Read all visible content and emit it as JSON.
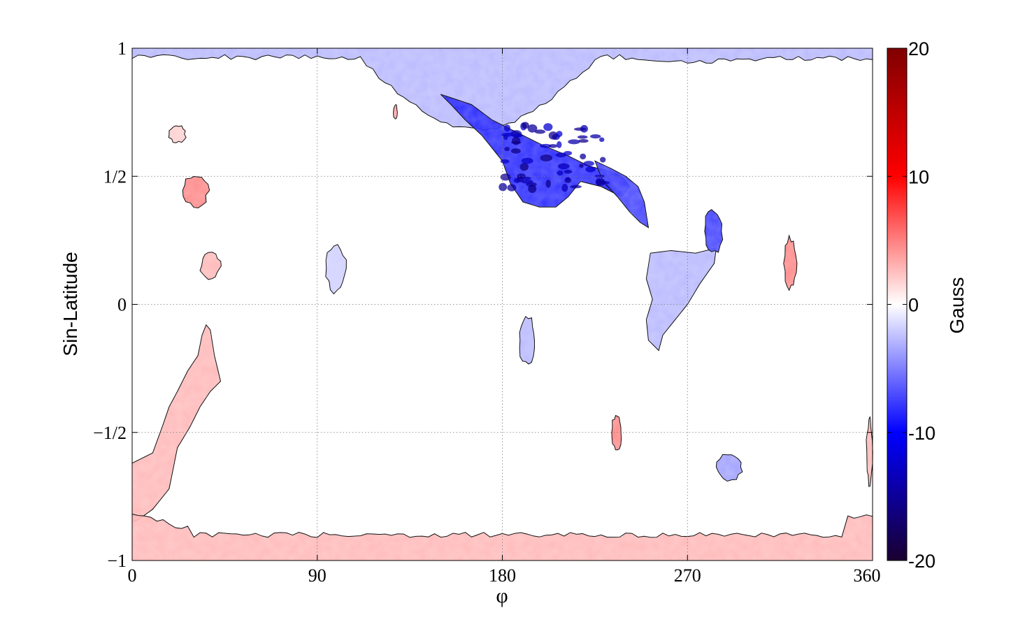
{
  "chart_data": {
    "type": "heatmap",
    "title": "",
    "xlabel": "φ",
    "ylabel": "Sin-Latitude",
    "xlim": [
      0,
      360
    ],
    "ylim": [
      -1,
      1
    ],
    "x_ticks": [
      "0",
      "90",
      "180",
      "270",
      "360"
    ],
    "x_tick_values": [
      0,
      90,
      180,
      270,
      360
    ],
    "y_ticks": [
      "1",
      "1/2",
      "0",
      "−1/2",
      "−1"
    ],
    "y_tick_values": [
      1,
      0.5,
      0,
      -0.5,
      -1
    ],
    "grid": true,
    "colorbar": {
      "label": "Gauss",
      "range": [
        -20,
        20
      ],
      "ticks": [
        "20",
        "10",
        "0",
        "-10",
        "-20"
      ],
      "tick_values": [
        20,
        10,
        0,
        -10,
        -20
      ],
      "colormap": [
        "#1a0030",
        "#0000ff",
        "#ffffff",
        "#ff0000",
        "#800000"
      ]
    },
    "regions": [
      {
        "name": "north-polar-cap",
        "mean_gauss": -3,
        "lon": [
          0,
          360
        ],
        "sinlat": [
          0.68,
          1.0
        ]
      },
      {
        "name": "northern-active-band",
        "mean_gauss": -9,
        "lon": [
          165,
          250
        ],
        "sinlat": [
          0.28,
          0.8
        ]
      },
      {
        "name": "northern-active-band-tail",
        "mean_gauss": -8,
        "lon": [
          225,
          250
        ],
        "sinlat": [
          0.28,
          0.55
        ]
      },
      {
        "name": "region-270-east",
        "mean_gauss": -3,
        "lon": [
          250,
          285
        ],
        "sinlat": [
          -0.18,
          0.22
        ]
      },
      {
        "name": "region-285-north",
        "mean_gauss": -8,
        "lon": [
          278,
          287
        ],
        "sinlat": [
          0.2,
          0.37
        ]
      },
      {
        "name": "west-north-spot-1",
        "mean_gauss": 2,
        "lon": [
          18,
          26
        ],
        "sinlat": [
          0.63,
          0.7
        ]
      },
      {
        "name": "west-north-spot-2",
        "mean_gauss": 5,
        "lon": [
          25,
          37
        ],
        "sinlat": [
          0.38,
          0.51
        ]
      },
      {
        "name": "west-north-spot-3",
        "mean_gauss": 3,
        "lon": [
          33,
          43
        ],
        "sinlat": [
          0.1,
          0.2
        ]
      },
      {
        "name": "small-spot-98",
        "mean_gauss": -2,
        "lon": [
          94,
          104
        ],
        "sinlat": [
          0.05,
          0.23
        ]
      },
      {
        "name": "small-spot-128",
        "mean_gauss": 4,
        "lon": [
          127,
          129
        ],
        "sinlat": [
          0.72,
          0.78
        ]
      },
      {
        "name": "southern-diagonal-band",
        "mean_gauss": 3,
        "lon": [
          0,
          45
        ],
        "sinlat": [
          -0.85,
          -0.08
        ]
      },
      {
        "name": "spot-192-south",
        "mean_gauss": -3,
        "lon": [
          188,
          196
        ],
        "sinlat": [
          -0.23,
          -0.05
        ]
      },
      {
        "name": "spot-235-south",
        "mean_gauss": 5,
        "lon": [
          233,
          238
        ],
        "sinlat": [
          -0.57,
          -0.43
        ]
      },
      {
        "name": "spot-290-south",
        "mean_gauss": -4,
        "lon": [
          284,
          297
        ],
        "sinlat": [
          -0.69,
          -0.58
        ]
      },
      {
        "name": "spot-320-north",
        "mean_gauss": 5,
        "lon": [
          317,
          323
        ],
        "sinlat": [
          0.06,
          0.26
        ]
      },
      {
        "name": "spot-360-south",
        "mean_gauss": 3,
        "lon": [
          357,
          360
        ],
        "sinlat": [
          -0.7,
          -0.45
        ]
      },
      {
        "name": "south-polar-cap",
        "mean_gauss": 3,
        "lon": [
          0,
          360
        ],
        "sinlat": [
          -1.0,
          -0.83
        ]
      }
    ]
  }
}
